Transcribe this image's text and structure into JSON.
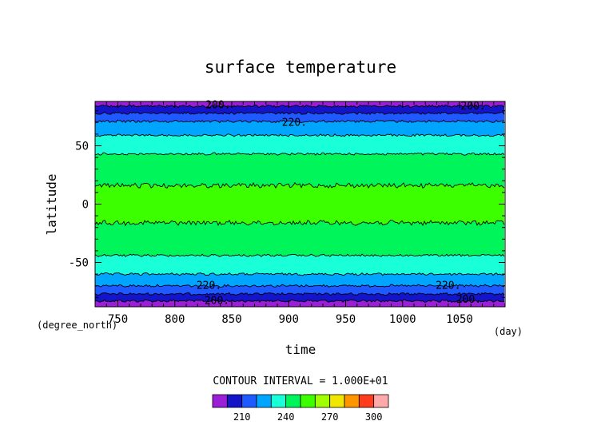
{
  "chart_data": {
    "type": "heatmap",
    "title": "surface temperature",
    "xlabel": "time",
    "ylabel": "latitude",
    "x_unit": "(day)",
    "y_unit": "(degree_north)",
    "xlim": [
      730,
      1090
    ],
    "ylim": [
      -88,
      88
    ],
    "x_ticks": [
      750,
      800,
      850,
      900,
      950,
      1000,
      1050
    ],
    "y_ticks": [
      -50,
      0,
      50
    ],
    "contour_interval_text": "CONTOUR INTERVAL = 1.000E+01",
    "levels": [
      190,
      200,
      210,
      220,
      230,
      240,
      250,
      260,
      270,
      280,
      290,
      300,
      310
    ],
    "level_colors": [
      "#9b1fd6",
      "#1414c8",
      "#1e5aff",
      "#00a5ff",
      "#19ffd7",
      "#00f55a",
      "#3cff00",
      "#a0ff00",
      "#f0e600",
      "#ff9600",
      "#ff3c1e",
      "#ffaaaa"
    ],
    "colorbar_tick_labels": [
      "210",
      "240",
      "270",
      "300"
    ],
    "colorbar_tick_values": [
      210,
      240,
      270,
      300
    ],
    "bands": [
      {
        "lat_from": -88,
        "lat_to": -83,
        "temp_range": [
          190,
          200
        ]
      },
      {
        "lat_from": -83,
        "lat_to": -77,
        "temp_range": [
          200,
          210
        ]
      },
      {
        "lat_from": -77,
        "lat_to": -70,
        "temp_range": [
          210,
          220
        ]
      },
      {
        "lat_from": -70,
        "lat_to": -60,
        "temp_range": [
          220,
          230
        ]
      },
      {
        "lat_from": -60,
        "lat_to": -44,
        "temp_range": [
          230,
          240
        ]
      },
      {
        "lat_from": -44,
        "lat_to": -16,
        "temp_range": [
          240,
          250
        ]
      },
      {
        "lat_from": -16,
        "lat_to": 16,
        "temp_range": [
          250,
          260
        ]
      },
      {
        "lat_from": 16,
        "lat_to": 43,
        "temp_range": [
          240,
          250
        ]
      },
      {
        "lat_from": 43,
        "lat_to": 59,
        "temp_range": [
          230,
          240
        ]
      },
      {
        "lat_from": 59,
        "lat_to": 71,
        "temp_range": [
          220,
          230
        ]
      },
      {
        "lat_from": 71,
        "lat_to": 78,
        "temp_range": [
          210,
          220
        ]
      },
      {
        "lat_from": 78,
        "lat_to": 84,
        "temp_range": [
          200,
          210
        ]
      },
      {
        "lat_from": 84,
        "lat_to": 88,
        "temp_range": [
          190,
          200
        ]
      }
    ],
    "contour_labels": [
      {
        "text": "200.",
        "x": 838,
        "y": 85
      },
      {
        "text": "200.",
        "x": 1062,
        "y": 84
      },
      {
        "text": "220.",
        "x": 905,
        "y": 70
      },
      {
        "text": "220.",
        "x": 830,
        "y": -70
      },
      {
        "text": "220.",
        "x": 1040,
        "y": -70
      },
      {
        "text": "200.",
        "x": 837,
        "y": -83
      },
      {
        "text": "200.",
        "x": 1058,
        "y": -82
      }
    ]
  }
}
